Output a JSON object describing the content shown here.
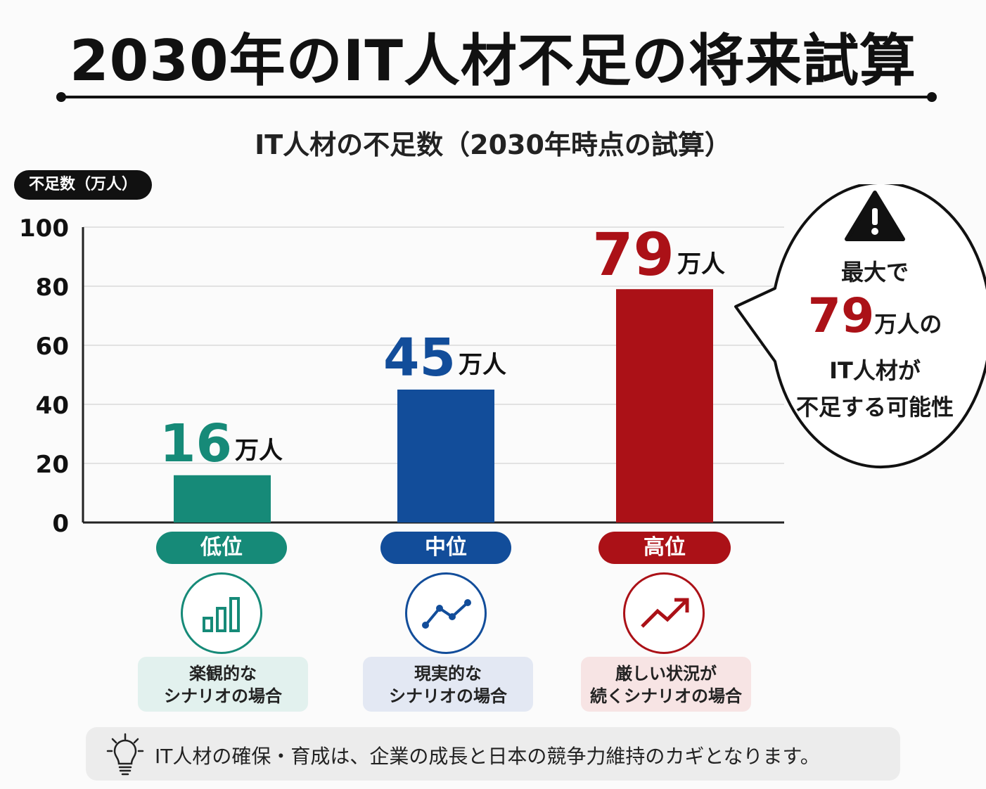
{
  "title": "2030年のIT人材不足の将来試算",
  "subtitle": "IT人材の不足数（2030年時点の試算）",
  "chart_data": {
    "type": "bar",
    "title": "IT人材の不足数（2030年時点の試算）",
    "ylabel": "不足数（万人）",
    "ylim": [
      0,
      100
    ],
    "yticks": [
      0,
      20,
      40,
      60,
      80,
      100
    ],
    "grid": true,
    "categories": [
      "低位",
      "中位",
      "高位"
    ],
    "values": [
      16,
      45,
      79
    ],
    "value_labels": [
      "16",
      "45",
      "79"
    ],
    "unit": "万人",
    "colors": [
      "#168a78",
      "#124d9a",
      "#ab1117"
    ]
  },
  "scenarios": [
    {
      "label": "低位",
      "icon": "bar-chart-icon",
      "desc1": "楽観的な",
      "desc2": "シナリオの場合",
      "color": "#168a78",
      "bg": "#e2f1ee"
    },
    {
      "label": "中位",
      "icon": "line-chart-icon",
      "desc1": "現実的な",
      "desc2": "シナリオの場合",
      "color": "#124d9a",
      "bg": "#e3e8f3"
    },
    {
      "label": "高位",
      "icon": "trend-up-icon",
      "desc1": "厳しい状況が",
      "desc2": "続くシナリオの場合",
      "color": "#ab1117",
      "bg": "#f7e4e4"
    }
  ],
  "callout": {
    "icon": "warning-icon",
    "line1": "最大で",
    "value": "79",
    "unit_suffix": "万人の",
    "line3": "IT人材が",
    "line4": "不足する可能性",
    "accent": "#ab1117"
  },
  "footer": {
    "icon": "lightbulb-icon",
    "text": "IT人材の確保・育成は、企業の成長と日本の競争力維持のカギとなります。"
  }
}
